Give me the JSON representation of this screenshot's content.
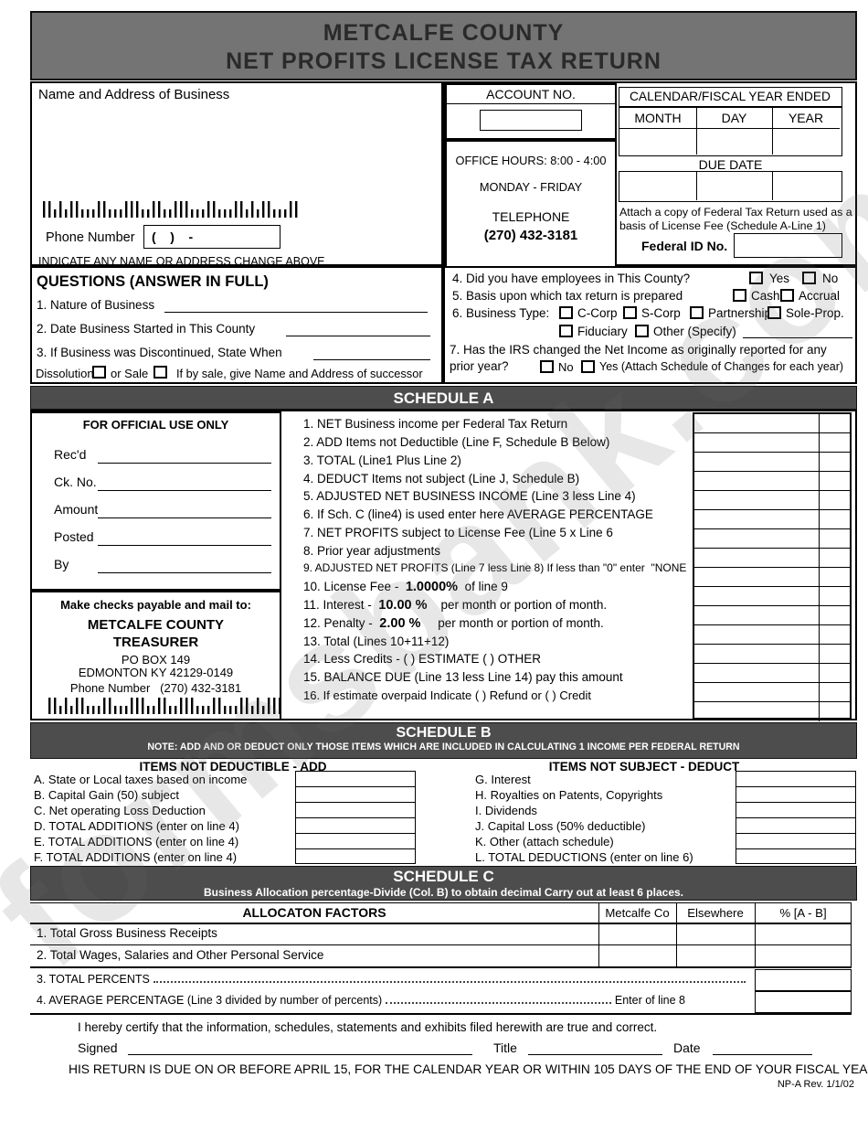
{
  "watermark": "formsbank.com",
  "header": {
    "line1": "METCALFE COUNTY",
    "line2": "NET PROFITS LICENSE TAX RETURN"
  },
  "top_left": {
    "name_address_label": "Name and Address of Business",
    "phone_label": "Phone Number",
    "phone_value": "(    )    -",
    "change_note": "INDICATE ANY NAME OR ADDRESS CHANGE ABOVE"
  },
  "account": {
    "label": "ACCOUNT NO.",
    "office_hours": "OFFICE HOURS: 8:00 - 4:00",
    "days": "MONDAY - FRIDAY",
    "telephone_label": "TELEPHONE",
    "telephone": "(270) 432-3181"
  },
  "fiscal": {
    "header": "CALENDAR/FISCAL YEAR ENDED",
    "col_month": "MONTH",
    "col_day": "DAY",
    "col_year": "YEAR",
    "due_date_label": "DUE DATE",
    "attach_note": "Attach a copy of Federal Tax Return used as a basis of License Fee (Schedule A-Line 1)",
    "federal_id_label": "Federal ID No."
  },
  "questions": {
    "heading": "QUESTIONS (ANSWER IN FULL)",
    "q1": "1. Nature of Business",
    "q2": "2. Date Business Started in This County",
    "q3": "3. If Business was Discontinued, State When",
    "dissolution": "Dissolution",
    "or_sale": "or Sale",
    "sale_note": "If by sale, give Name and Address of successor",
    "q4": "4. Did you have employees in This County?",
    "yes": "Yes",
    "no": "No",
    "q5": "5. Basis upon which tax return is prepared",
    "cash": "Cash",
    "accrual": "Accrual",
    "q6": "6. Business Type:",
    "c_corp": "C-Corp",
    "s_corp": "S-Corp",
    "partnership": "Partnership",
    "sole_prop": "Sole-Prop.",
    "fiduciary": "Fiduciary",
    "other": "Other (Specify)",
    "q7_line1": "7. Has the IRS changed the Net Income as originally reported for any",
    "q7_line2": "prior year?",
    "q7_no": "No",
    "q7_yes": "Yes (Attach Schedule of Changes for each year)"
  },
  "schedule_a": {
    "title": "SCHEDULE A",
    "official_heading": "FOR OFFICIAL USE ONLY",
    "official_fields": [
      "Rec'd",
      "Ck. No.",
      "Amount",
      "Posted",
      "By"
    ],
    "payable_line1": "Make checks payable and mail to:",
    "payable_name1": "METCALFE COUNTY",
    "payable_name2": "TREASURER",
    "payable_addr1": "PO BOX 149",
    "payable_addr2": "EDMONTON KY 42129-0149",
    "payable_phone": "Phone Number   (270) 432-3181",
    "lines": [
      {
        "text": "1. NET Business income per Federal Tax Return"
      },
      {
        "text": "2. ADD Items not Deductible (Line F, Schedule B Below)"
      },
      {
        "text": "3. TOTAL (Line1 Plus Line 2)"
      },
      {
        "text": "4. DEDUCT Items not subject (Line J, Schedule B)"
      },
      {
        "text": "5. ADJUSTED NET BUSINESS INCOME (Line 3 less Line 4)"
      },
      {
        "text": "6. If Sch. C (line4) is used enter here AVERAGE PERCENTAGE"
      },
      {
        "text": "7. NET PROFITS subject to License Fee (Line 5 x Line 6"
      },
      {
        "text": "8. Prior year adjustments"
      },
      {
        "text": "9. ADJUSTED NET PROFITS (Line 7 less Line 8) If less than \"0\" enter  \"NONE"
      },
      {
        "text": "10. License Fee -  ",
        "bold": "1.0000%",
        "rest": "  of line 9"
      },
      {
        "text": "11. Interest -  ",
        "bold": "10.00 %",
        "rest": "    per month or portion of month."
      },
      {
        "text": "12. Penalty -  ",
        "bold": "2.00 %",
        "rest": "     per month or portion of month."
      },
      {
        "text": "13. Total (Lines 10+11+12)"
      },
      {
        "text": "14. Less Credits - ( ) ESTIMATE ( ) OTHER"
      },
      {
        "text": "15. BALANCE DUE (Line 13 less Line 14) pay this amount"
      },
      {
        "text": "16. If estimate overpaid Indicate ( ) Refund or ( ) Credit"
      }
    ]
  },
  "schedule_b": {
    "title": "SCHEDULE B",
    "note": "NOTE: ADD AND OR DEDUCT ONLY THOSE ITEMS WHICH ARE INCLUDED IN CALCULATING 1 INCOME PER FEDERAL RETURN",
    "add_header": "ITEMS NOT DEDUCTIBLE - ADD",
    "deduct_header": "ITEMS NOT SUBJECT - DEDUCT",
    "add_items": [
      "A. State or Local taxes based on income",
      "B. Capital Gain (50) subject",
      "C. Net operating Loss Deduction",
      "D. TOTAL ADDITIONS (enter on line 4)",
      "E. TOTAL ADDITIONS (enter on line 4)",
      "F. TOTAL ADDITIONS (enter on line 4)"
    ],
    "deduct_items": [
      "G. Interest",
      "H. Royalties on Patents, Copyrights",
      "I. Dividends",
      "J. Capital Loss (50% deductible)",
      "K. Other (attach schedule)",
      "L. TOTAL DEDUCTIONS (enter on line 6)"
    ]
  },
  "schedule_c": {
    "title": "SCHEDULE C",
    "note": "Business Allocation percentage-Divide (Col. B) to obtain decimal Carry out at least 6 places.",
    "factors_header": "ALLOCATON FACTORS",
    "col1": "Metcalfe Co",
    "col2": "Elsewhere",
    "col3": "% [A - B]",
    "row1": "1. Total Gross Business Receipts",
    "row2": "2. Total Wages, Salaries and Other Personal Service",
    "row3": "3. TOTAL PERCENTS",
    "row4": "4. AVERAGE PERCENTAGE (Line 3 divided by number of percents)",
    "row4_suffix": "Enter of line 8"
  },
  "footer": {
    "certify": "I hereby certify that the information, schedules, statements and exhibits filed herewith are true and correct.",
    "signed": "Signed",
    "title": "Title",
    "date": "Date",
    "due_notice": "HIS RETURN IS DUE ON OR BEFORE APRIL 15, FOR THE CALENDAR YEAR OR WITHIN 105 DAYS OF THE END OF YOUR FISCAL YEA",
    "rev": "NP-A Rev. 1/1/02"
  }
}
